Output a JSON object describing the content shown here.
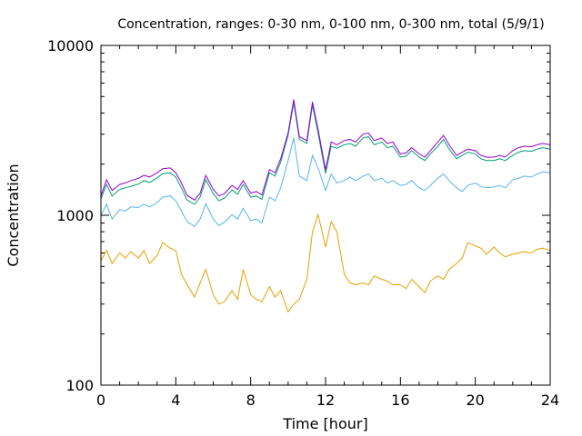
{
  "chart_data": {
    "type": "line",
    "title": "Concentration, ranges: 0-30 nm, 0-100 nm, 0-300 nm, total (5/9/1)",
    "xlabel": "Time [hour]",
    "ylabel": "Concentration",
    "xlim": [
      0,
      24
    ],
    "ylim": [
      100,
      10000
    ],
    "yscale": "log",
    "grid": false,
    "legend": "none",
    "xticks": [
      "0",
      "4",
      "8",
      "12",
      "16",
      "20",
      "24"
    ],
    "yticks": [
      "100",
      "1000",
      "10000"
    ],
    "series": [
      {
        "color": "#e69f00",
        "x": [
          0,
          0.3,
          0.6,
          1.0,
          1.3,
          1.6,
          2.0,
          2.3,
          2.6,
          3.0,
          3.3,
          3.7,
          4.0,
          4.3,
          4.6,
          5.0,
          5.3,
          5.6,
          6.0,
          6.3,
          6.6,
          7.0,
          7.3,
          7.6,
          8.0,
          8.3,
          8.6,
          9.0,
          9.3,
          9.6,
          10.0,
          10.3,
          10.6,
          11.0,
          11.3,
          11.6,
          12.0,
          12.3,
          12.6,
          13.0,
          13.3,
          13.6,
          14.0,
          14.3,
          14.6,
          15.0,
          15.3,
          15.6,
          16.0,
          16.3,
          16.6,
          17.0,
          17.3,
          17.6,
          18.0,
          18.3,
          18.6,
          19.0,
          19.3,
          19.6,
          20.0,
          20.3,
          20.6,
          21.0,
          21.3,
          21.6,
          22.0,
          22.3,
          22.6,
          23.0,
          23.3,
          23.6,
          24.0
        ],
        "values": [
          540,
          620,
          520,
          600,
          560,
          610,
          560,
          620,
          520,
          580,
          690,
          640,
          620,
          450,
          390,
          330,
          400,
          480,
          340,
          300,
          310,
          360,
          320,
          480,
          340,
          320,
          310,
          380,
          330,
          360,
          270,
          300,
          320,
          420,
          800,
          1010,
          650,
          920,
          800,
          450,
          400,
          390,
          400,
          390,
          440,
          420,
          410,
          390,
          390,
          370,
          420,
          380,
          350,
          410,
          440,
          420,
          480,
          520,
          560,
          690,
          660,
          640,
          590,
          650,
          600,
          570,
          590,
          600,
          610,
          600,
          630,
          640,
          620
        ]
      },
      {
        "color": "#56b4e9",
        "x": [
          0,
          0.3,
          0.6,
          1.0,
          1.3,
          1.6,
          2.0,
          2.3,
          2.6,
          3.0,
          3.3,
          3.7,
          4.0,
          4.3,
          4.6,
          5.0,
          5.3,
          5.6,
          6.0,
          6.3,
          6.6,
          7.0,
          7.3,
          7.6,
          8.0,
          8.3,
          8.6,
          9.0,
          9.3,
          9.6,
          10.0,
          10.3,
          10.6,
          11.0,
          11.3,
          11.6,
          12.0,
          12.3,
          12.6,
          13.0,
          13.3,
          13.6,
          14.0,
          14.3,
          14.6,
          15.0,
          15.3,
          15.6,
          16.0,
          16.3,
          16.6,
          17.0,
          17.3,
          17.6,
          18.0,
          18.3,
          18.6,
          19.0,
          19.3,
          19.6,
          20.0,
          20.3,
          20.6,
          21.0,
          21.3,
          21.6,
          22.0,
          22.3,
          22.6,
          23.0,
          23.3,
          23.6,
          24.0
        ],
        "values": [
          1000,
          1160,
          950,
          1080,
          1060,
          1120,
          1110,
          1160,
          1120,
          1190,
          1280,
          1300,
          1220,
          1060,
          920,
          860,
          950,
          1170,
          950,
          870,
          910,
          1010,
          950,
          1100,
          930,
          950,
          900,
          1280,
          1220,
          1450,
          2100,
          2850,
          1700,
          1600,
          2250,
          1900,
          1400,
          1750,
          1550,
          1600,
          1680,
          1600,
          1700,
          1750,
          1600,
          1650,
          1550,
          1600,
          1500,
          1520,
          1600,
          1450,
          1400,
          1500,
          1650,
          1750,
          1600,
          1450,
          1380,
          1500,
          1550,
          1480,
          1450,
          1470,
          1500,
          1450,
          1620,
          1650,
          1700,
          1680,
          1750,
          1800,
          1780
        ]
      },
      {
        "color": "#009e73",
        "x": [
          0,
          0.3,
          0.6,
          1.0,
          1.3,
          1.6,
          2.0,
          2.3,
          2.6,
          3.0,
          3.3,
          3.7,
          4.0,
          4.3,
          4.6,
          5.0,
          5.3,
          5.6,
          6.0,
          6.3,
          6.6,
          7.0,
          7.3,
          7.6,
          8.0,
          8.3,
          8.6,
          9.0,
          9.3,
          9.6,
          10.0,
          10.3,
          10.6,
          11.0,
          11.3,
          11.6,
          12.0,
          12.3,
          12.6,
          13.0,
          13.3,
          13.6,
          14.0,
          14.3,
          14.6,
          15.0,
          15.3,
          15.6,
          16.0,
          16.3,
          16.6,
          17.0,
          17.3,
          17.6,
          18.0,
          18.3,
          18.6,
          19.0,
          19.3,
          19.6,
          20.0,
          20.3,
          20.6,
          21.0,
          21.3,
          21.6,
          22.0,
          22.3,
          22.6,
          23.0,
          23.3,
          23.6,
          24.0
        ],
        "values": [
          1250,
          1520,
          1300,
          1420,
          1450,
          1480,
          1530,
          1600,
          1560,
          1660,
          1760,
          1780,
          1680,
          1450,
          1230,
          1160,
          1280,
          1620,
          1340,
          1220,
          1260,
          1410,
          1330,
          1520,
          1280,
          1300,
          1240,
          1780,
          1700,
          2050,
          2950,
          4600,
          2800,
          2650,
          4450,
          3050,
          1760,
          2550,
          2480,
          2600,
          2650,
          2550,
          2850,
          2900,
          2600,
          2700,
          2500,
          2550,
          2200,
          2230,
          2400,
          2200,
          2100,
          2300,
          2550,
          2800,
          2450,
          2150,
          2250,
          2350,
          2300,
          2150,
          2100,
          2100,
          2150,
          2100,
          2250,
          2350,
          2400,
          2380,
          2450,
          2500,
          2450
        ]
      },
      {
        "color": "#9400d3",
        "x": [
          0,
          0.3,
          0.6,
          1.0,
          1.3,
          1.6,
          2.0,
          2.3,
          2.6,
          3.0,
          3.3,
          3.7,
          4.0,
          4.3,
          4.6,
          5.0,
          5.3,
          5.6,
          6.0,
          6.3,
          6.6,
          7.0,
          7.3,
          7.6,
          8.0,
          8.3,
          8.6,
          9.0,
          9.3,
          9.6,
          10.0,
          10.3,
          10.6,
          11.0,
          11.3,
          11.6,
          12.0,
          12.3,
          12.6,
          13.0,
          13.3,
          13.6,
          14.0,
          14.3,
          14.6,
          15.0,
          15.3,
          15.6,
          16.0,
          16.3,
          16.6,
          17.0,
          17.3,
          17.6,
          18.0,
          18.3,
          18.6,
          19.0,
          19.3,
          19.6,
          20.0,
          20.3,
          20.6,
          21.0,
          21.3,
          21.6,
          22.0,
          22.3,
          22.6,
          23.0,
          23.3,
          23.6,
          24.0
        ],
        "values": [
          1300,
          1620,
          1400,
          1520,
          1550,
          1600,
          1650,
          1720,
          1680,
          1780,
          1880,
          1900,
          1780,
          1550,
          1310,
          1230,
          1350,
          1720,
          1420,
          1300,
          1340,
          1500,
          1420,
          1600,
          1350,
          1380,
          1320,
          1860,
          1780,
          2150,
          3050,
          4800,
          2900,
          2750,
          4650,
          3200,
          1850,
          2700,
          2600,
          2750,
          2800,
          2700,
          3000,
          3050,
          2750,
          2850,
          2650,
          2700,
          2300,
          2330,
          2500,
          2300,
          2200,
          2400,
          2700,
          2950,
          2600,
          2250,
          2350,
          2450,
          2400,
          2250,
          2200,
          2200,
          2250,
          2200,
          2400,
          2500,
          2550,
          2530,
          2600,
          2650,
          2600
        ]
      }
    ]
  }
}
